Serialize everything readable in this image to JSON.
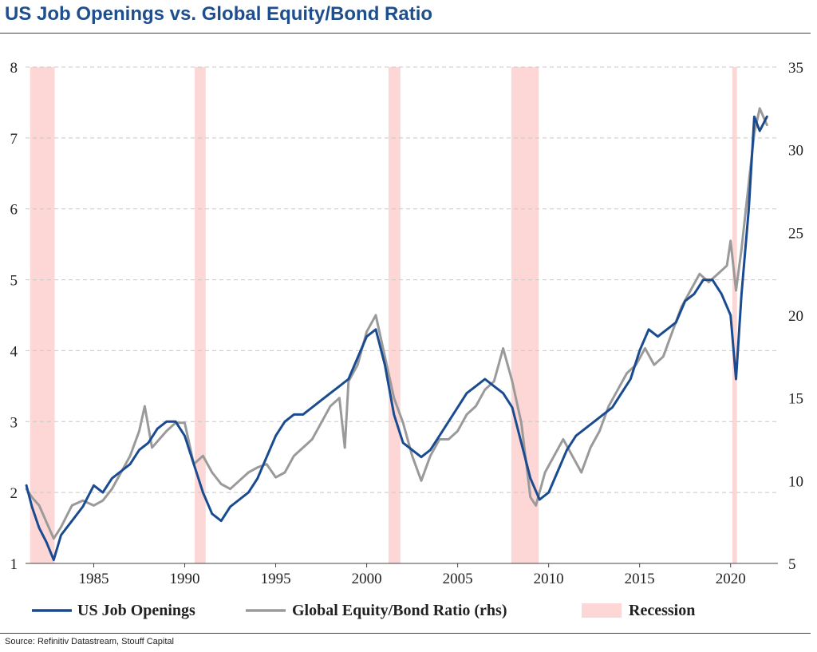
{
  "title": "US Job Openings vs. Global Equity/Bond Ratio",
  "source": "Source: Refinitiv Datastream, Stouff Capital",
  "legend": {
    "job_openings": "US Job Openings",
    "equity_bond": "Global Equity/Bond Ratio (rhs)",
    "recession": "Recession"
  },
  "colors": {
    "job_openings": "#1a4a8f",
    "equity_bond": "#9a9a9a",
    "recession": "#fdd6d6",
    "grid": "#c8c8c8",
    "title": "#1f4e8c"
  },
  "chart_data": {
    "type": "line",
    "x_range": [
      1981.25,
      2022.6
    ],
    "x_ticks": [
      1985,
      1990,
      1995,
      2000,
      2005,
      2010,
      2015,
      2020
    ],
    "y_left": {
      "range": [
        1,
        8
      ],
      "ticks": [
        1,
        2,
        3,
        4,
        5,
        6,
        7,
        8
      ]
    },
    "y_right": {
      "range": [
        5,
        35
      ],
      "ticks": [
        5,
        10,
        15,
        20,
        25,
        30,
        35
      ]
    },
    "grid": "horizontal dashed",
    "recessions": [
      [
        1981.5,
        1982.85
      ],
      [
        1990.55,
        1991.15
      ],
      [
        2001.2,
        2001.85
      ],
      [
        2007.95,
        2009.45
      ],
      [
        2020.1,
        2020.35
      ]
    ],
    "series": [
      {
        "name": "US Job Openings",
        "axis": "left",
        "x": [
          1981.3,
          1981.6,
          1982.0,
          1982.4,
          1982.8,
          1983.2,
          1983.8,
          1984.4,
          1985.0,
          1985.5,
          1986.0,
          1986.5,
          1987.0,
          1987.5,
          1988.0,
          1988.5,
          1989.0,
          1989.5,
          1990.0,
          1990.5,
          1991.0,
          1991.5,
          1992.0,
          1992.5,
          1993.0,
          1993.5,
          1994.0,
          1994.5,
          1995.0,
          1995.5,
          1996.0,
          1996.5,
          1997.0,
          1997.5,
          1998.0,
          1998.5,
          1999.0,
          1999.5,
          2000.0,
          2000.5,
          2001.0,
          2001.5,
          2002.0,
          2002.5,
          2003.0,
          2003.5,
          2004.0,
          2004.5,
          2005.0,
          2005.5,
          2006.0,
          2006.5,
          2007.0,
          2007.5,
          2008.0,
          2008.5,
          2009.0,
          2009.5,
          2010.0,
          2010.5,
          2011.0,
          2011.5,
          2012.0,
          2012.5,
          2013.0,
          2013.5,
          2014.0,
          2014.5,
          2015.0,
          2015.5,
          2016.0,
          2016.5,
          2017.0,
          2017.5,
          2018.0,
          2018.5,
          2019.0,
          2019.5,
          2020.0,
          2020.3,
          2020.6,
          2021.0,
          2021.3,
          2021.6,
          2022.0
        ],
        "values": [
          2.1,
          1.8,
          1.5,
          1.3,
          1.05,
          1.4,
          1.6,
          1.8,
          2.1,
          2.0,
          2.2,
          2.3,
          2.4,
          2.6,
          2.7,
          2.9,
          3.0,
          3.0,
          2.8,
          2.4,
          2.0,
          1.7,
          1.6,
          1.8,
          1.9,
          2.0,
          2.2,
          2.5,
          2.8,
          3.0,
          3.1,
          3.1,
          3.2,
          3.3,
          3.4,
          3.5,
          3.6,
          3.9,
          4.2,
          4.3,
          3.8,
          3.1,
          2.7,
          2.6,
          2.5,
          2.6,
          2.8,
          3.0,
          3.2,
          3.4,
          3.5,
          3.6,
          3.5,
          3.4,
          3.2,
          2.7,
          2.2,
          1.9,
          2.0,
          2.3,
          2.6,
          2.8,
          2.9,
          3.0,
          3.1,
          3.2,
          3.4,
          3.6,
          4.0,
          4.3,
          4.2,
          4.3,
          4.4,
          4.7,
          4.8,
          5.0,
          5.0,
          4.8,
          4.5,
          3.6,
          4.8,
          6.0,
          7.3,
          7.1,
          7.3
        ]
      },
      {
        "name": "Global Equity/Bond Ratio (rhs)",
        "axis": "right",
        "x": [
          1981.3,
          1981.6,
          1982.0,
          1982.4,
          1982.8,
          1983.2,
          1983.8,
          1984.4,
          1985.0,
          1985.5,
          1986.0,
          1986.5,
          1987.0,
          1987.5,
          1987.8,
          1988.2,
          1988.6,
          1989.0,
          1989.5,
          1990.0,
          1990.5,
          1991.0,
          1991.5,
          1992.0,
          1992.5,
          1993.0,
          1993.5,
          1994.0,
          1994.5,
          1995.0,
          1995.5,
          1996.0,
          1996.5,
          1997.0,
          1997.5,
          1998.0,
          1998.5,
          1998.8,
          1999.0,
          1999.5,
          2000.0,
          2000.5,
          2001.0,
          2001.5,
          2002.0,
          2002.5,
          2003.0,
          2003.5,
          2004.0,
          2004.5,
          2005.0,
          2005.5,
          2006.0,
          2006.5,
          2007.0,
          2007.5,
          2008.0,
          2008.5,
          2009.0,
          2009.3,
          2009.8,
          2010.3,
          2010.8,
          2011.3,
          2011.8,
          2012.3,
          2012.8,
          2013.3,
          2013.8,
          2014.3,
          2014.8,
          2015.3,
          2015.8,
          2016.3,
          2016.8,
          2017.3,
          2017.8,
          2018.3,
          2018.8,
          2019.3,
          2019.8,
          2020.0,
          2020.3,
          2020.6,
          2021.0,
          2021.3,
          2021.6,
          2022.0
        ],
        "values": [
          9.5,
          9.0,
          8.5,
          7.5,
          6.5,
          7.2,
          8.5,
          8.8,
          8.5,
          8.8,
          9.5,
          10.5,
          11.5,
          13.0,
          14.5,
          12.0,
          12.5,
          13.0,
          13.5,
          13.5,
          11.0,
          11.5,
          10.5,
          9.8,
          9.5,
          10.0,
          10.5,
          10.8,
          11.0,
          10.2,
          10.5,
          11.5,
          12.0,
          12.5,
          13.5,
          14.5,
          15.0,
          12.0,
          16.0,
          17.0,
          19.0,
          20.0,
          17.5,
          15.0,
          13.5,
          11.5,
          10.0,
          11.5,
          12.5,
          12.5,
          13.0,
          14.0,
          14.5,
          15.5,
          16.0,
          18.0,
          16.0,
          13.5,
          9.0,
          8.5,
          10.5,
          11.5,
          12.5,
          11.5,
          10.5,
          12.0,
          13.0,
          14.5,
          15.5,
          16.5,
          17.0,
          18.0,
          17.0,
          17.5,
          19.0,
          20.5,
          21.5,
          22.5,
          22.0,
          22.5,
          23.0,
          24.5,
          21.5,
          24.0,
          28.0,
          31.0,
          32.5,
          31.5
        ]
      }
    ]
  }
}
